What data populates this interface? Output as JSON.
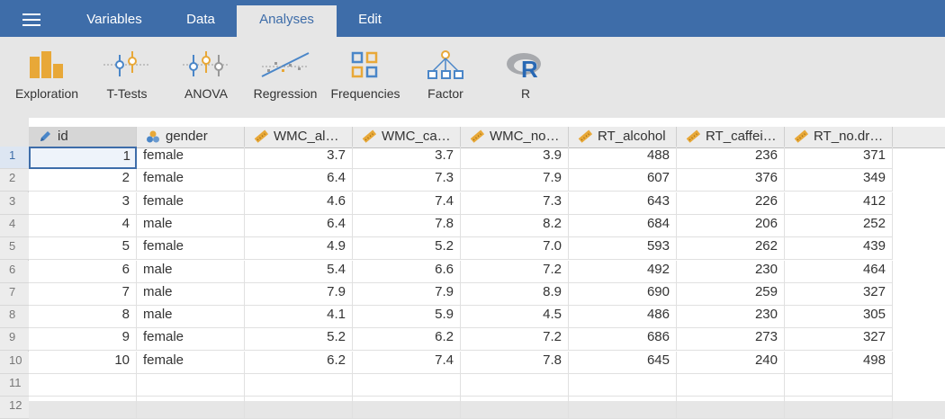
{
  "menu": {
    "tabs": [
      {
        "label": "Variables"
      },
      {
        "label": "Data"
      },
      {
        "label": "Analyses"
      },
      {
        "label": "Edit"
      }
    ],
    "active": "Analyses"
  },
  "ribbon": {
    "buttons": [
      {
        "label": "Exploration",
        "icon": "exploration-icon"
      },
      {
        "label": "T-Tests",
        "icon": "t-tests-icon"
      },
      {
        "label": "ANOVA",
        "icon": "anova-icon"
      },
      {
        "label": "Regression",
        "icon": "regression-icon"
      },
      {
        "label": "Frequencies",
        "icon": "frequencies-icon"
      },
      {
        "label": "Factor",
        "icon": "factor-icon"
      },
      {
        "label": "R",
        "icon": "r-icon"
      }
    ]
  },
  "colors": {
    "accent": "#3e6da9",
    "ribbon_orange": "#e8a838",
    "ribbon_blue": "#4a86c8"
  },
  "columns": [
    {
      "name": "id",
      "icon": "pencil-id-icon",
      "type": "num"
    },
    {
      "name": "gender",
      "icon": "nominal-circles-icon",
      "type": "txt"
    },
    {
      "name": "WMC_al…",
      "icon": "ruler-icon",
      "type": "num"
    },
    {
      "name": "WMC_ca…",
      "icon": "ruler-icon",
      "type": "num"
    },
    {
      "name": "WMC_no…",
      "icon": "ruler-icon",
      "type": "num"
    },
    {
      "name": "RT_alcohol",
      "icon": "ruler-icon",
      "type": "num"
    },
    {
      "name": "RT_caffei…",
      "icon": "ruler-icon",
      "type": "num"
    },
    {
      "name": "RT_no.dr…",
      "icon": "ruler-icon",
      "type": "num"
    }
  ],
  "rows": [
    [
      "1",
      "female",
      "3.7",
      "3.7",
      "3.9",
      "488",
      "236",
      "371"
    ],
    [
      "2",
      "female",
      "6.4",
      "7.3",
      "7.9",
      "607",
      "376",
      "349"
    ],
    [
      "3",
      "female",
      "4.6",
      "7.4",
      "7.3",
      "643",
      "226",
      "412"
    ],
    [
      "4",
      "male",
      "6.4",
      "7.8",
      "8.2",
      "684",
      "206",
      "252"
    ],
    [
      "5",
      "female",
      "4.9",
      "5.2",
      "7.0",
      "593",
      "262",
      "439"
    ],
    [
      "6",
      "male",
      "5.4",
      "6.6",
      "7.2",
      "492",
      "230",
      "464"
    ],
    [
      "7",
      "male",
      "7.9",
      "7.9",
      "8.9",
      "690",
      "259",
      "327"
    ],
    [
      "8",
      "male",
      "4.1",
      "5.9",
      "4.5",
      "486",
      "230",
      "305"
    ],
    [
      "9",
      "female",
      "5.2",
      "6.2",
      "7.2",
      "686",
      "273",
      "327"
    ],
    [
      "10",
      "female",
      "6.2",
      "7.4",
      "7.8",
      "645",
      "240",
      "498"
    ]
  ],
  "row_numbers": [
    "1",
    "2",
    "3",
    "4",
    "5",
    "6",
    "7",
    "8",
    "9",
    "10",
    "11",
    "12"
  ]
}
